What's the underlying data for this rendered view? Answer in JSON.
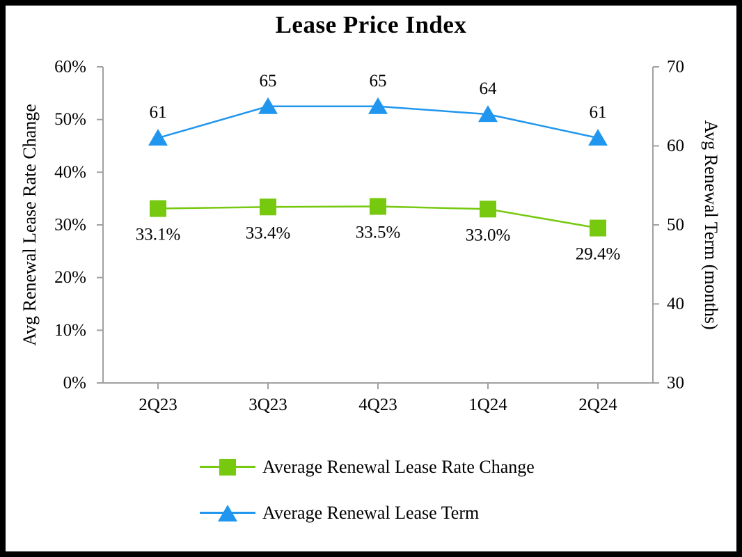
{
  "title": "Lease Price Index",
  "colors": {
    "rate_change_green": "#76C90F",
    "lease_term_blue": "#2196EE",
    "axis_gray": "#A0A0A0",
    "text_black": "#000000",
    "frame_black": "#000000",
    "background": "#FFFFFF"
  },
  "chart_data": {
    "type": "line",
    "title": "Lease Price Index",
    "categories": [
      "2Q23",
      "3Q23",
      "4Q23",
      "1Q24",
      "2Q24"
    ],
    "series": [
      {
        "name": "Average Renewal Lease Rate Change",
        "axis": "left",
        "marker": "square",
        "color": "#76C90F",
        "values": [
          33.1,
          33.4,
          33.5,
          33.0,
          29.4
        ],
        "data_labels": [
          "33.1%",
          "33.4%",
          "33.5%",
          "33.0%",
          "29.4%"
        ],
        "label_position": "below"
      },
      {
        "name": "Average Renewal Lease Term",
        "axis": "right",
        "marker": "triangle",
        "color": "#2196EE",
        "values": [
          61,
          65,
          65,
          64,
          61
        ],
        "data_labels": [
          "61",
          "65",
          "65",
          "64",
          "61"
        ],
        "label_position": "above"
      }
    ],
    "left_axis": {
      "label": "Avg Renewal Lease Rate Change",
      "min": 0,
      "max": 60,
      "step": 10,
      "tick_values": [
        0,
        10,
        20,
        30,
        40,
        50,
        60
      ],
      "tick_labels": [
        "0%",
        "10%",
        "20%",
        "30%",
        "40%",
        "50%",
        "60%"
      ]
    },
    "right_axis": {
      "label": "Avg Renewal Term (months)",
      "min": 30,
      "max": 70,
      "step": 10,
      "tick_values": [
        30,
        40,
        50,
        60,
        70
      ],
      "tick_labels": [
        "30",
        "40",
        "50",
        "60",
        "70"
      ]
    },
    "grid": false,
    "legend_position": "bottom"
  }
}
